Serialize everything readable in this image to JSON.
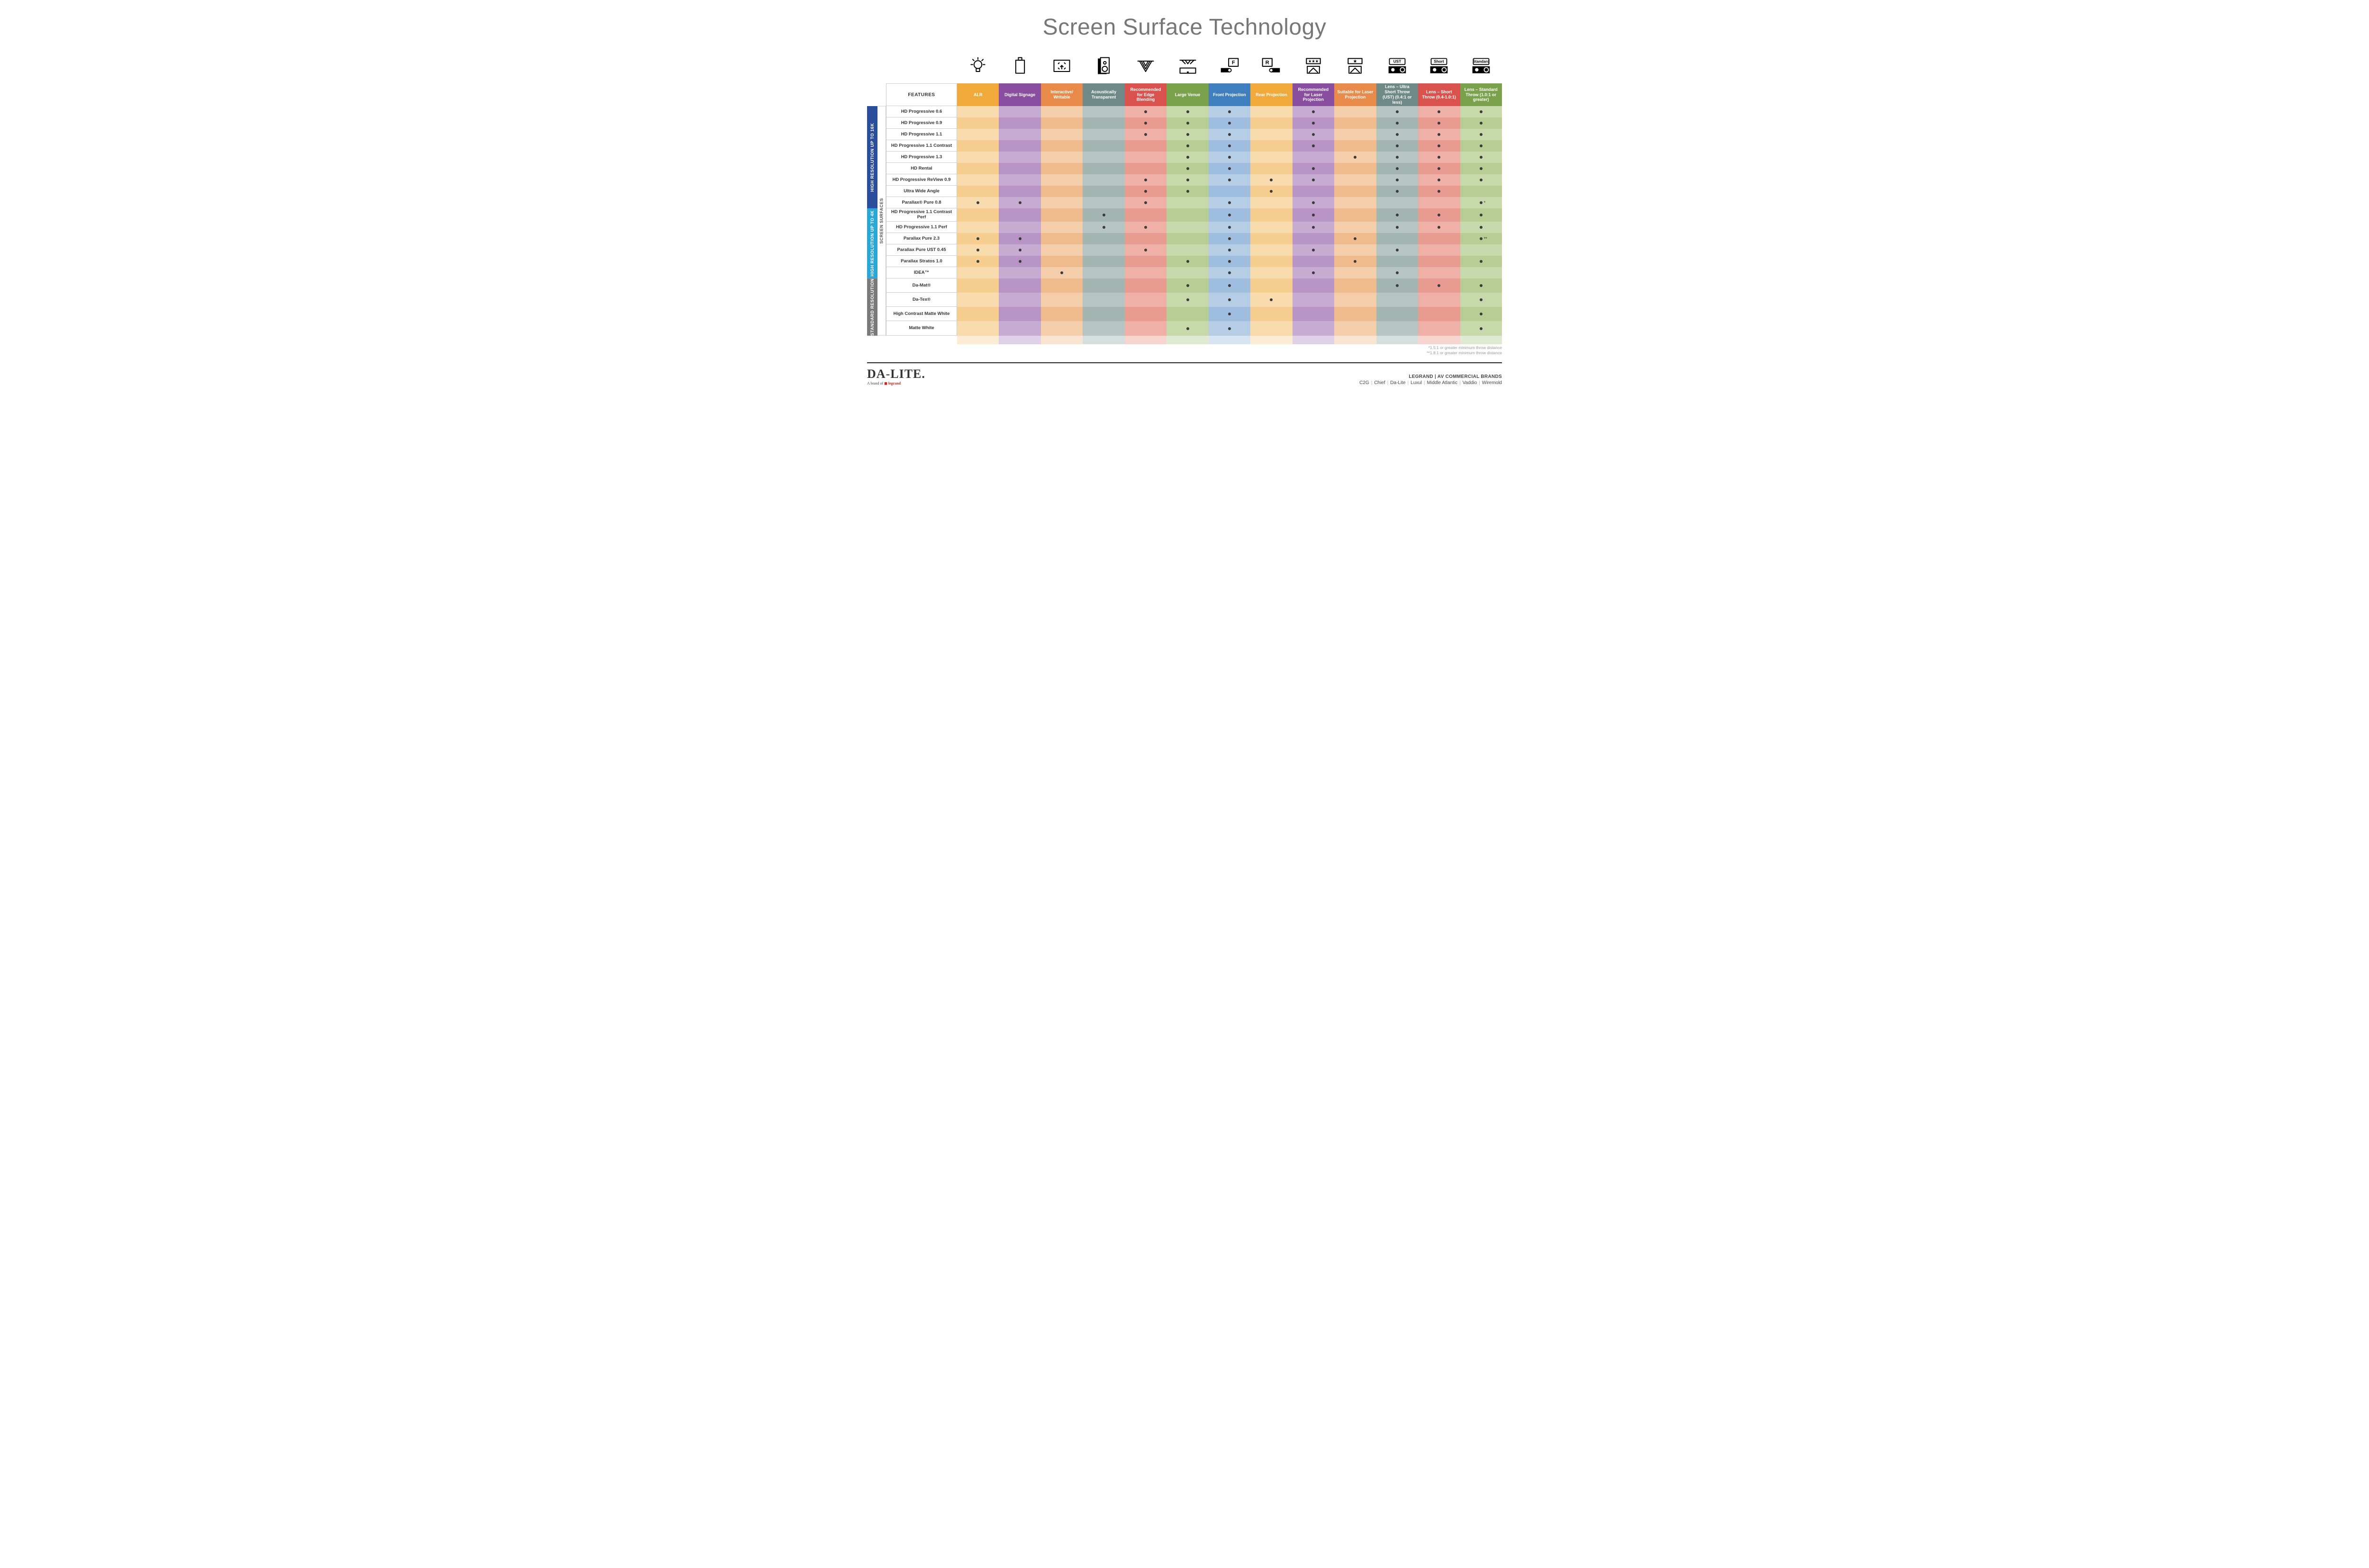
{
  "title": "Screen Surface Technology",
  "columns": [
    {
      "key": "alr",
      "label": "ALR",
      "color": "#f2a93b"
    },
    {
      "key": "ds",
      "label": "Digital Signage",
      "color": "#8a4ea0"
    },
    {
      "key": "iw",
      "label": "Interactive/ Writable",
      "color": "#e88b4a"
    },
    {
      "key": "at",
      "label": "Acoustically Transparent",
      "color": "#6f8a86"
    },
    {
      "key": "edge",
      "label": "Recommended for Edge Blending",
      "color": "#d9524e"
    },
    {
      "key": "lv",
      "label": "Large Venue",
      "color": "#7aa24d"
    },
    {
      "key": "fp",
      "label": "Front Projection",
      "color": "#3f7fbf"
    },
    {
      "key": "rp",
      "label": "Rear Projection",
      "color": "#f2a93b"
    },
    {
      "key": "rlaser",
      "label": "Recommended for Laser Projection",
      "color": "#8a4ea0"
    },
    {
      "key": "slaser",
      "label": "Suitable for Laser Projection",
      "color": "#e88b4a"
    },
    {
      "key": "ust",
      "label": "Lens – Ultra Short Throw (UST) (0.4:1 or less)",
      "color": "#6f8a86"
    },
    {
      "key": "short",
      "label": "Lens – Short Throw (0.4-1.0:1)",
      "color": "#d9524e"
    },
    {
      "key": "std",
      "label": "Lens – Standard Throw (1.0:1 or greater)",
      "color": "#7aa24d"
    }
  ],
  "column_tints": {
    "alr": [
      "#f9dcae",
      "#f6cf90"
    ],
    "ds": [
      "#c8abd2",
      "#b893c6"
    ],
    "iw": [
      "#f4cdab",
      "#f0bc8e"
    ],
    "at": [
      "#b7c5c2",
      "#a3b5b1"
    ],
    "edge": [
      "#efb0a7",
      "#e89c91"
    ],
    "lv": [
      "#c7d8ab",
      "#b7cd93"
    ],
    "fp": [
      "#b6cde6",
      "#9fbdde"
    ],
    "rp": [
      "#f9dcae",
      "#f6cf90"
    ],
    "rlaser": [
      "#c8abd2",
      "#b893c6"
    ],
    "slaser": [
      "#f4cdab",
      "#f0bc8e"
    ],
    "ust": [
      "#b7c5c2",
      "#a3b5b1"
    ],
    "short": [
      "#efb0a7",
      "#e89c91"
    ],
    "std": [
      "#c7d8ab",
      "#b7cd93"
    ]
  },
  "icons": [
    "bulb",
    "signage",
    "touch",
    "speaker",
    "wedge",
    "rig",
    "front",
    "rear",
    "laser-rec",
    "laser-suit",
    "ust",
    "short",
    "standard"
  ],
  "icon_lens_labels": {
    "ust": "UST",
    "short": "Short",
    "standard": "Standard"
  },
  "side_outer": "SCREEN SURFACES",
  "groups": [
    {
      "label": "HIGH RESOLUTION UP TO 16K",
      "color": "#2a4e9b",
      "rows": [
        {
          "name": "HD Progressive 0.6",
          "dots": {
            "edge": 1,
            "lv": 1,
            "fp": 1,
            "rlaser": 1,
            "ust": 1,
            "short": 1,
            "std": 1
          }
        },
        {
          "name": "HD Progressive 0.9",
          "dots": {
            "edge": 1,
            "lv": 1,
            "fp": 1,
            "rlaser": 1,
            "ust": 1,
            "short": 1,
            "std": 1
          }
        },
        {
          "name": "HD Progressive 1.1",
          "dots": {
            "edge": 1,
            "lv": 1,
            "fp": 1,
            "rlaser": 1,
            "ust": 1,
            "short": 1,
            "std": 1
          }
        },
        {
          "name": "HD Progressive 1.1 Contrast",
          "dots": {
            "lv": 1,
            "fp": 1,
            "rlaser": 1,
            "ust": 1,
            "short": 1,
            "std": 1
          }
        },
        {
          "name": "HD Progressive 1.3",
          "dots": {
            "lv": 1,
            "fp": 1,
            "slaser": 1,
            "ust": 1,
            "short": 1,
            "std": 1
          }
        },
        {
          "name": "HD Rental",
          "dots": {
            "lv": 1,
            "fp": 1,
            "rlaser": 1,
            "ust": 1,
            "short": 1,
            "std": 1
          }
        },
        {
          "name": "HD Progressive ReView 0.9",
          "dots": {
            "edge": 1,
            "lv": 1,
            "fp": 1,
            "rp": 1,
            "rlaser": 1,
            "ust": 1,
            "short": 1,
            "std": 1
          }
        },
        {
          "name": "Ultra Wide Angle",
          "dots": {
            "edge": 1,
            "lv": 1,
            "rp": 1,
            "ust": 1,
            "short": 1
          }
        },
        {
          "name": "Parallax® Pure 0.8",
          "dots": {
            "alr": 1,
            "ds": 1,
            "edge": 1,
            "fp": 1,
            "rlaser": 1,
            "std": 1
          },
          "note_std": "*"
        }
      ]
    },
    {
      "label": "HIGH RESOLUTION UP TO 4K",
      "color": "#2aa7d4",
      "rows": [
        {
          "name": "HD Progressive 1.1 Contrast Perf",
          "dots": {
            "at": 1,
            "fp": 1,
            "rlaser": 1,
            "ust": 1,
            "short": 1,
            "std": 1
          }
        },
        {
          "name": "HD Progressive 1.1 Perf",
          "dots": {
            "at": 1,
            "edge": 1,
            "fp": 1,
            "rlaser": 1,
            "ust": 1,
            "short": 1,
            "std": 1
          }
        },
        {
          "name": "Parallax Pure 2.3",
          "dots": {
            "alr": 1,
            "ds": 1,
            "fp": 1,
            "slaser": 1,
            "std": 1
          },
          "note_std": "**"
        },
        {
          "name": "Parallax Pure UST 0.45",
          "dots": {
            "alr": 1,
            "ds": 1,
            "edge": 1,
            "fp": 1,
            "rlaser": 1,
            "ust": 1
          }
        },
        {
          "name": "Parallax Stratos 1.0",
          "dots": {
            "alr": 1,
            "ds": 1,
            "lv": 1,
            "fp": 1,
            "slaser": 1,
            "std": 1
          }
        },
        {
          "name": "IDEA™",
          "dots": {
            "iw": 1,
            "fp": 1,
            "rlaser": 1,
            "ust": 1
          }
        }
      ]
    },
    {
      "label": "STANDARD RESOLUTION",
      "color": "#7a7a7a",
      "rows": [
        {
          "name": "Da-Mat®",
          "dots": {
            "lv": 1,
            "fp": 1,
            "ust": 1,
            "short": 1,
            "std": 1
          }
        },
        {
          "name": "Da-Tex®",
          "dots": {
            "lv": 1,
            "fp": 1,
            "rp": 1,
            "std": 1
          }
        },
        {
          "name": "High Contrast Matte White",
          "dots": {
            "fp": 1,
            "std": 1
          }
        },
        {
          "name": "Matte White",
          "dots": {
            "lv": 1,
            "fp": 1,
            "std": 1
          }
        }
      ]
    }
  ],
  "footnotes": [
    "*1.5:1 or greater minimum throw distance",
    "**1.8:1 or greater minimum throw distance"
  ],
  "footer": {
    "logo": "DA-LITE.",
    "logo_sub_prefix": "A brand of ",
    "logo_sub_brand": "legrand",
    "brands_title": "LEGRAND | AV COMMERCIAL BRANDS",
    "brands": [
      "C2G",
      "Chief",
      "Da-Lite",
      "Luxul",
      "Middle Atlantic",
      "Vaddio",
      "Wiremold"
    ]
  },
  "features_header": "FEATURES"
}
